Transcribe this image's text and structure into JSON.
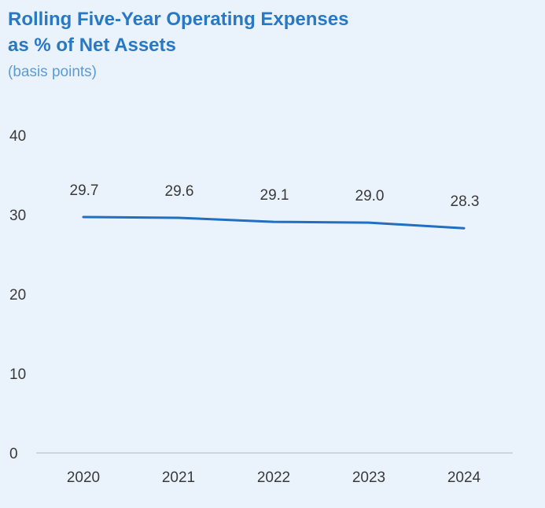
{
  "chart_data": {
    "type": "line",
    "title": "Rolling Five-Year Operating Expenses as % of Net Assets",
    "title_lines": [
      "Rolling Five-Year Operating Expenses",
      "as % of Net Assets"
    ],
    "subtitle": "(basis points)",
    "categories": [
      "2020",
      "2021",
      "2022",
      "2023",
      "2024"
    ],
    "series": [
      {
        "values": [
          29.7,
          29.6,
          29.1,
          29.0,
          28.3
        ],
        "labels": [
          "29.7",
          "29.6",
          "29.1",
          "29.0",
          "28.3"
        ]
      }
    ],
    "ylim": [
      0,
      40
    ],
    "yticks": [
      0,
      10,
      20,
      30,
      40
    ],
    "ytick_labels": [
      "0",
      "10",
      "20",
      "30",
      "40"
    ],
    "grid": false,
    "line_color": "#1f6fc2",
    "title_color": "#2878c3",
    "subtitle_color": "#5c9bd6",
    "background": "#eaf3fc"
  }
}
